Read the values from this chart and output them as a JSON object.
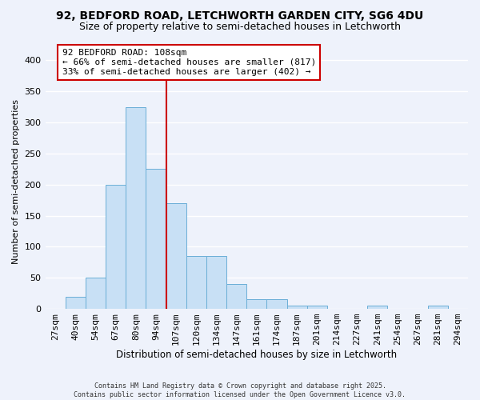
{
  "title": "92, BEDFORD ROAD, LETCHWORTH GARDEN CITY, SG6 4DU",
  "subtitle": "Size of property relative to semi-detached houses in Letchworth",
  "xlabel": "Distribution of semi-detached houses by size in Letchworth",
  "ylabel": "Number of semi-detached properties",
  "bin_labels": [
    "27sqm",
    "40sqm",
    "54sqm",
    "67sqm",
    "80sqm",
    "94sqm",
    "107sqm",
    "120sqm",
    "134sqm",
    "147sqm",
    "161sqm",
    "174sqm",
    "187sqm",
    "201sqm",
    "214sqm",
    "227sqm",
    "241sqm",
    "254sqm",
    "267sqm",
    "281sqm",
    "294sqm"
  ],
  "bar_values": [
    0,
    20,
    50,
    200,
    325,
    225,
    170,
    85,
    85,
    40,
    15,
    15,
    5,
    5,
    0,
    0,
    5,
    0,
    0,
    5,
    0
  ],
  "bar_color": "#c8e0f5",
  "bar_edge_color": "#6aaed6",
  "vline_x_idx": 6,
  "vline_color": "#cc0000",
  "annotation_title": "92 BEDFORD ROAD: 108sqm",
  "annotation_line1": "← 66% of semi-detached houses are smaller (817)",
  "annotation_line2": "33% of semi-detached houses are larger (402) →",
  "annotation_box_color": "#ffffff",
  "annotation_box_edge": "#cc0000",
  "ylim": [
    0,
    410
  ],
  "yticks": [
    0,
    50,
    100,
    150,
    200,
    250,
    300,
    350,
    400
  ],
  "footer1": "Contains HM Land Registry data © Crown copyright and database right 2025.",
  "footer2": "Contains public sector information licensed under the Open Government Licence v3.0.",
  "background_color": "#eef2fb",
  "grid_color": "#ffffff",
  "title_fontsize": 10,
  "subtitle_fontsize": 9
}
